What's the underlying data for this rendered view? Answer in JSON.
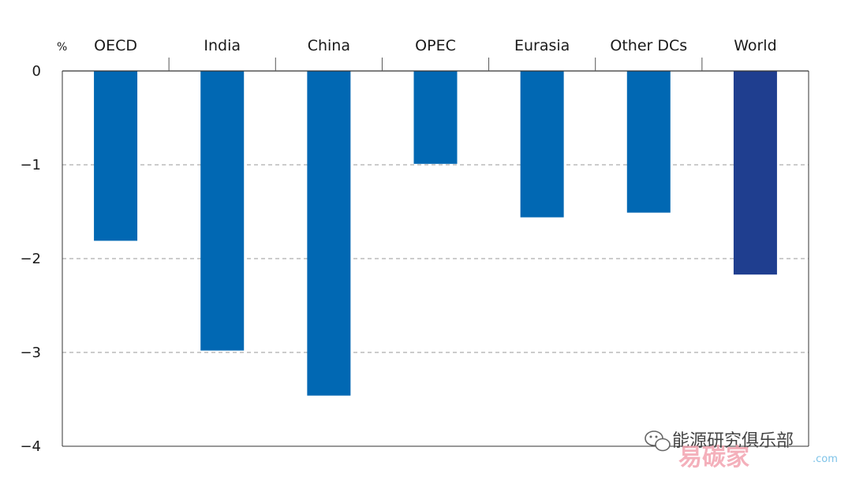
{
  "chart_data": {
    "type": "bar",
    "unit": "%",
    "categories": [
      "OECD",
      "India",
      "China",
      "OPEC",
      "Eurasia",
      "Other DCs",
      "World"
    ],
    "values": [
      -1.81,
      -2.98,
      -3.46,
      -0.99,
      -1.56,
      -1.51,
      -2.17
    ],
    "ylim": [
      -4,
      0
    ],
    "yticks": [
      0,
      -1,
      -2,
      -3,
      -4
    ],
    "ytick_labels": [
      "0",
      "−1",
      "−2",
      "−3",
      "−4"
    ],
    "grid": "dashed horizontal",
    "colors": {
      "default": "#0168b3",
      "highlight": "#1f3e8f",
      "highlight_category": "World"
    }
  },
  "watermark": {
    "text": "能源研究俱乐部",
    "brand": "易碳家",
    "brand_small": ".com"
  }
}
